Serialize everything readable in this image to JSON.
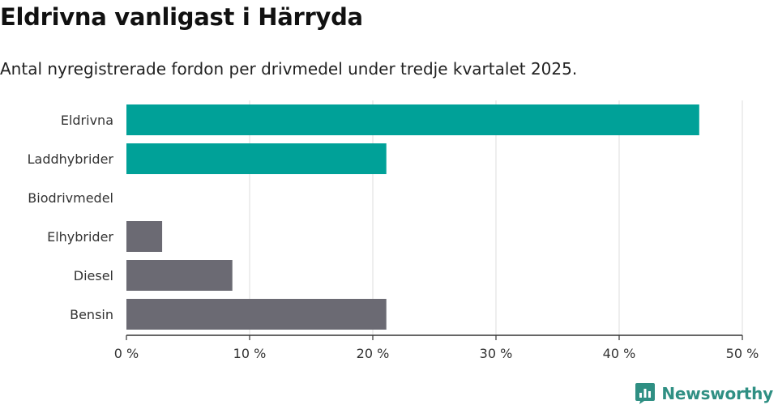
{
  "title": "Eldrivna vanligast i Härryda",
  "subtitle": "Antal nyregistrerade fordon per drivmedel under tredje kvartalet 2025.",
  "chart_data": {
    "type": "bar",
    "orientation": "horizontal",
    "categories": [
      "Eldrivna",
      "Laddhybrider",
      "Biodrivmedel",
      "Elhybrider",
      "Diesel",
      "Bensin"
    ],
    "values": [
      46.5,
      21.1,
      0,
      2.9,
      8.6,
      21.1
    ],
    "colors": [
      "#00a198",
      "#00a198",
      "#00a198",
      "#6b6a73",
      "#6b6a73",
      "#6b6a73"
    ],
    "xlim": [
      0,
      50
    ],
    "xticks": [
      0,
      10,
      20,
      30,
      40,
      50
    ],
    "xtick_labels": [
      "0 %",
      "10 %",
      "20 %",
      "30 %",
      "40 %",
      "50 %"
    ],
    "grid": true,
    "xlabel": "",
    "ylabel": ""
  },
  "brand": {
    "name": "Newsworthy",
    "color": "#2f8f83"
  }
}
